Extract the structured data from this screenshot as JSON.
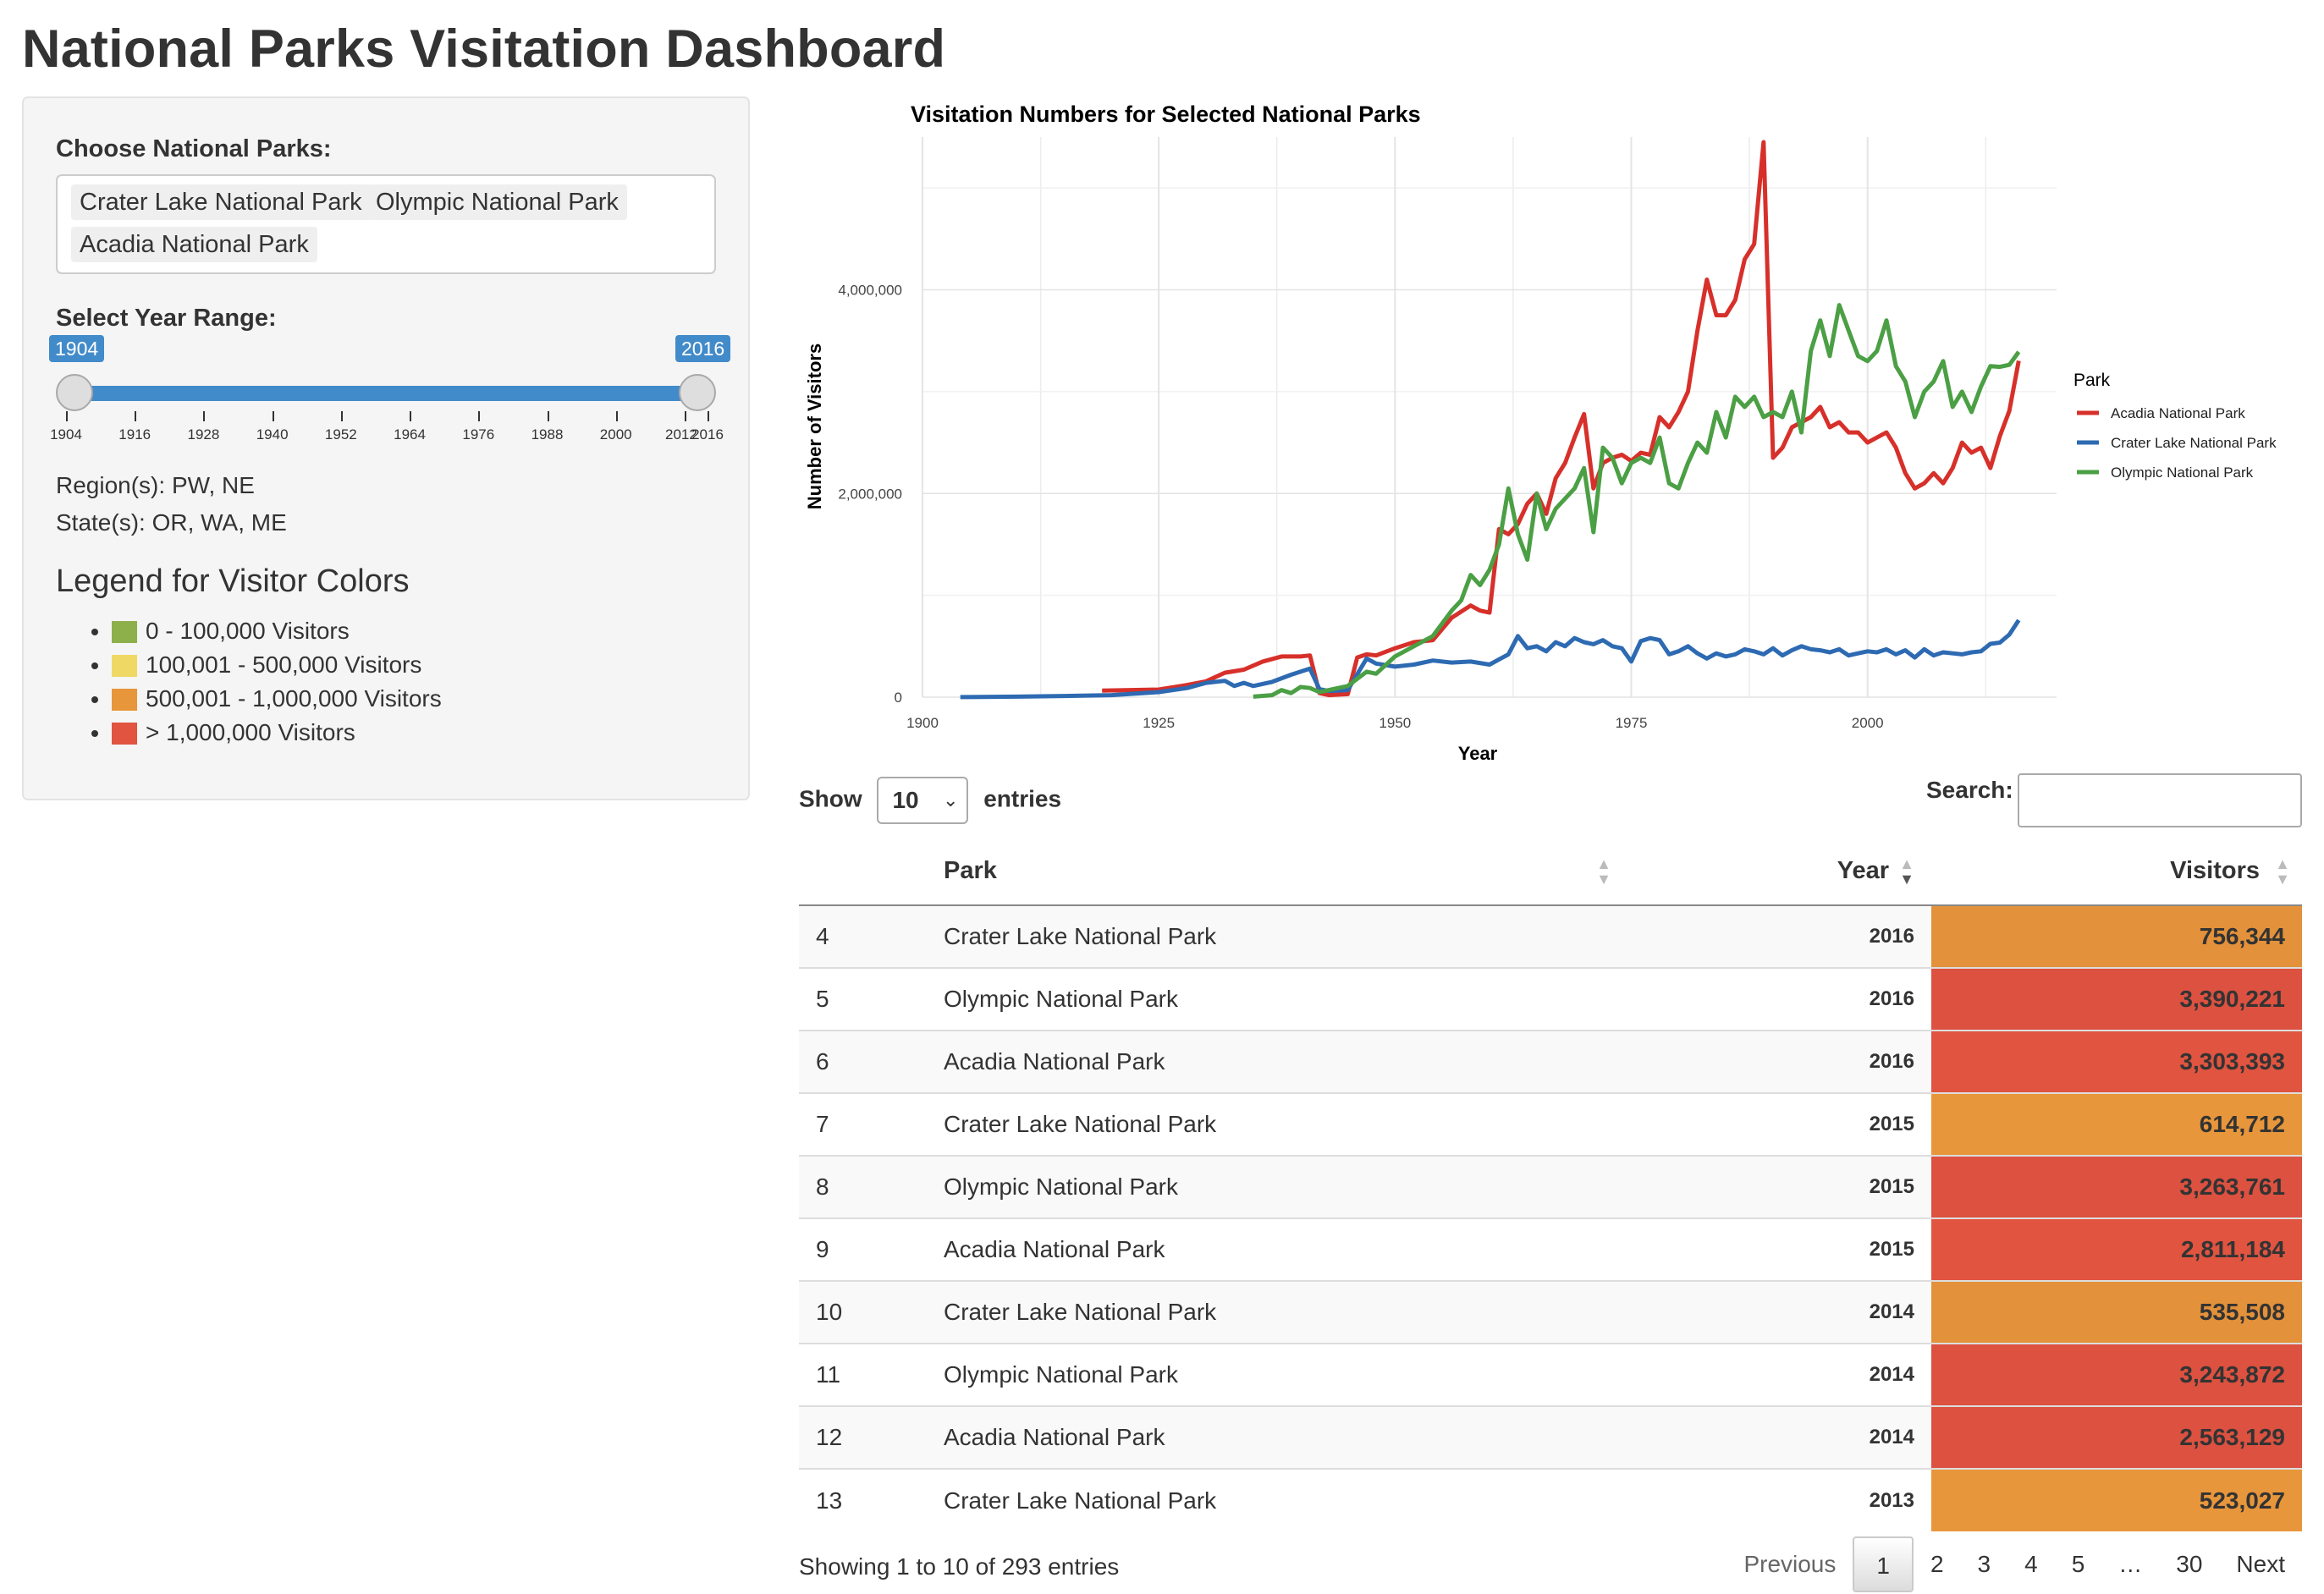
{
  "app": {
    "title": "National Parks Visitation Dashboard"
  },
  "sidebar": {
    "parks_label": "Choose National Parks:",
    "selected_parks": [
      "Crater Lake National Park",
      "Olympic National Park",
      "Acadia National Park"
    ],
    "year_label": "Select Year Range:",
    "year_min": "1904",
    "year_max": "2016",
    "year_ticks": [
      "1904",
      "1916",
      "1928",
      "1940",
      "1952",
      "1964",
      "1976",
      "1988",
      "2000",
      "2012",
      "2016"
    ],
    "regions": "Region(s): PW, NE",
    "states": "State(s): OR, WA, ME",
    "legend_title": "Legend for Visitor Colors",
    "legend_items": [
      {
        "label": "0 - 100,000 Visitors",
        "color": "#8db04a"
      },
      {
        "label": "100,001 - 500,000 Visitors",
        "color": "#f0d865"
      },
      {
        "label": "500,001 - 1,000,000 Visitors",
        "color": "#e8963b"
      },
      {
        "label": "> 1,000,000 Visitors",
        "color": "#e05440"
      }
    ]
  },
  "chart_data": {
    "type": "line",
    "title": "Visitation Numbers for Selected National Parks",
    "xlabel": "Year",
    "ylabel": "Number of Visitors",
    "xlim": [
      1900,
      2020
    ],
    "ylim": [
      0,
      5500000
    ],
    "x_ticks": [
      1900,
      1925,
      1950,
      1975,
      2000
    ],
    "y_ticks": [
      0,
      2000000,
      4000000
    ],
    "y_tick_labels": [
      "0",
      "2,000,000",
      "4,000,000"
    ],
    "grid": true,
    "legend_title": "Park",
    "legend_position": "right",
    "series": [
      {
        "name": "Acadia National Park",
        "color": "#d7302a",
        "points": [
          [
            1919,
            64000
          ],
          [
            1922,
            70000
          ],
          [
            1925,
            75000
          ],
          [
            1928,
            120000
          ],
          [
            1930,
            155000
          ],
          [
            1932,
            240000
          ],
          [
            1934,
            270000
          ],
          [
            1936,
            350000
          ],
          [
            1938,
            400000
          ],
          [
            1940,
            400000
          ],
          [
            1941,
            410000
          ],
          [
            1942,
            40000
          ],
          [
            1943,
            20000
          ],
          [
            1945,
            30000
          ],
          [
            1946,
            390000
          ],
          [
            1947,
            420000
          ],
          [
            1948,
            410000
          ],
          [
            1950,
            480000
          ],
          [
            1952,
            540000
          ],
          [
            1954,
            560000
          ],
          [
            1956,
            780000
          ],
          [
            1958,
            900000
          ],
          [
            1959,
            850000
          ],
          [
            1960,
            830000
          ],
          [
            1961,
            1650000
          ],
          [
            1962,
            1600000
          ],
          [
            1963,
            1700000
          ],
          [
            1964,
            1900000
          ],
          [
            1965,
            2000000
          ],
          [
            1966,
            1800000
          ],
          [
            1967,
            2150000
          ],
          [
            1968,
            2300000
          ],
          [
            1969,
            2550000
          ],
          [
            1970,
            2780000
          ],
          [
            1971,
            2050000
          ],
          [
            1972,
            2300000
          ],
          [
            1973,
            2350000
          ],
          [
            1974,
            2380000
          ],
          [
            1975,
            2320000
          ],
          [
            1976,
            2400000
          ],
          [
            1977,
            2380000
          ],
          [
            1978,
            2750000
          ],
          [
            1979,
            2650000
          ],
          [
            1980,
            2800000
          ],
          [
            1981,
            3000000
          ],
          [
            1982,
            3600000
          ],
          [
            1983,
            4100000
          ],
          [
            1984,
            3750000
          ],
          [
            1985,
            3750000
          ],
          [
            1986,
            3900000
          ],
          [
            1987,
            4300000
          ],
          [
            1988,
            4450000
          ],
          [
            1989,
            5450000
          ],
          [
            1990,
            2350000
          ],
          [
            1991,
            2450000
          ],
          [
            1992,
            2650000
          ],
          [
            1993,
            2700000
          ],
          [
            1994,
            2750000
          ],
          [
            1995,
            2850000
          ],
          [
            1996,
            2650000
          ],
          [
            1997,
            2700000
          ],
          [
            1998,
            2600000
          ],
          [
            1999,
            2600000
          ],
          [
            2000,
            2500000
          ],
          [
            2001,
            2550000
          ],
          [
            2002,
            2600000
          ],
          [
            2003,
            2450000
          ],
          [
            2004,
            2200000
          ],
          [
            2005,
            2050000
          ],
          [
            2006,
            2100000
          ],
          [
            2007,
            2200000
          ],
          [
            2008,
            2100000
          ],
          [
            2009,
            2250000
          ],
          [
            2010,
            2500000
          ],
          [
            2011,
            2400000
          ],
          [
            2012,
            2450000
          ],
          [
            2013,
            2250000
          ],
          [
            2014,
            2563129
          ],
          [
            2015,
            2811184
          ],
          [
            2016,
            3303393
          ]
        ]
      },
      {
        "name": "Crater Lake National Park",
        "color": "#2d6ab2",
        "points": [
          [
            1904,
            1000
          ],
          [
            1910,
            5000
          ],
          [
            1915,
            12000
          ],
          [
            1920,
            20000
          ],
          [
            1925,
            50000
          ],
          [
            1928,
            90000
          ],
          [
            1930,
            140000
          ],
          [
            1932,
            160000
          ],
          [
            1933,
            110000
          ],
          [
            1934,
            140000
          ],
          [
            1935,
            110000
          ],
          [
            1937,
            150000
          ],
          [
            1939,
            220000
          ],
          [
            1941,
            280000
          ],
          [
            1942,
            80000
          ],
          [
            1943,
            60000
          ],
          [
            1945,
            70000
          ],
          [
            1947,
            380000
          ],
          [
            1948,
            330000
          ],
          [
            1950,
            300000
          ],
          [
            1952,
            320000
          ],
          [
            1954,
            360000
          ],
          [
            1956,
            340000
          ],
          [
            1958,
            350000
          ],
          [
            1960,
            320000
          ],
          [
            1962,
            420000
          ],
          [
            1963,
            600000
          ],
          [
            1964,
            480000
          ],
          [
            1965,
            500000
          ],
          [
            1966,
            450000
          ],
          [
            1967,
            540000
          ],
          [
            1968,
            500000
          ],
          [
            1969,
            580000
          ],
          [
            1970,
            540000
          ],
          [
            1971,
            520000
          ],
          [
            1972,
            560000
          ],
          [
            1973,
            500000
          ],
          [
            1974,
            480000
          ],
          [
            1975,
            350000
          ],
          [
            1976,
            550000
          ],
          [
            1977,
            580000
          ],
          [
            1978,
            560000
          ],
          [
            1979,
            420000
          ],
          [
            1980,
            450000
          ],
          [
            1981,
            500000
          ],
          [
            1982,
            430000
          ],
          [
            1983,
            380000
          ],
          [
            1984,
            430000
          ],
          [
            1985,
            400000
          ],
          [
            1986,
            420000
          ],
          [
            1987,
            470000
          ],
          [
            1988,
            450000
          ],
          [
            1989,
            420000
          ],
          [
            1990,
            480000
          ],
          [
            1991,
            410000
          ],
          [
            1992,
            460000
          ],
          [
            1993,
            500000
          ],
          [
            1994,
            470000
          ],
          [
            1995,
            460000
          ],
          [
            1996,
            440000
          ],
          [
            1997,
            470000
          ],
          [
            1998,
            410000
          ],
          [
            1999,
            430000
          ],
          [
            2000,
            450000
          ],
          [
            2001,
            440000
          ],
          [
            2002,
            470000
          ],
          [
            2003,
            420000
          ],
          [
            2004,
            460000
          ],
          [
            2005,
            390000
          ],
          [
            2006,
            470000
          ],
          [
            2007,
            410000
          ],
          [
            2008,
            440000
          ],
          [
            2009,
            430000
          ],
          [
            2010,
            420000
          ],
          [
            2011,
            440000
          ],
          [
            2012,
            450000
          ],
          [
            2013,
            523027
          ],
          [
            2014,
            535508
          ],
          [
            2015,
            614712
          ],
          [
            2016,
            756344
          ]
        ]
      },
      {
        "name": "Olympic National Park",
        "color": "#4b9f44",
        "points": [
          [
            1935,
            5000
          ],
          [
            1937,
            20000
          ],
          [
            1938,
            70000
          ],
          [
            1939,
            40000
          ],
          [
            1940,
            100000
          ],
          [
            1941,
            90000
          ],
          [
            1942,
            50000
          ],
          [
            1944,
            90000
          ],
          [
            1945,
            110000
          ],
          [
            1947,
            250000
          ],
          [
            1948,
            230000
          ],
          [
            1950,
            400000
          ],
          [
            1952,
            500000
          ],
          [
            1954,
            600000
          ],
          [
            1956,
            850000
          ],
          [
            1957,
            950000
          ],
          [
            1958,
            1200000
          ],
          [
            1959,
            1100000
          ],
          [
            1960,
            1250000
          ],
          [
            1961,
            1500000
          ],
          [
            1962,
            2050000
          ],
          [
            1963,
            1600000
          ],
          [
            1964,
            1350000
          ],
          [
            1965,
            2000000
          ],
          [
            1966,
            1650000
          ],
          [
            1967,
            1850000
          ],
          [
            1968,
            1950000
          ],
          [
            1969,
            2050000
          ],
          [
            1970,
            2250000
          ],
          [
            1971,
            1620000
          ],
          [
            1972,
            2450000
          ],
          [
            1973,
            2350000
          ],
          [
            1974,
            2100000
          ],
          [
            1975,
            2300000
          ],
          [
            1976,
            2350000
          ],
          [
            1977,
            2300000
          ],
          [
            1978,
            2550000
          ],
          [
            1979,
            2100000
          ],
          [
            1980,
            2050000
          ],
          [
            1981,
            2300000
          ],
          [
            1982,
            2500000
          ],
          [
            1983,
            2400000
          ],
          [
            1984,
            2800000
          ],
          [
            1985,
            2550000
          ],
          [
            1986,
            2950000
          ],
          [
            1987,
            2850000
          ],
          [
            1988,
            2950000
          ],
          [
            1989,
            2750000
          ],
          [
            1990,
            2800000
          ],
          [
            1991,
            2750000
          ],
          [
            1992,
            3000000
          ],
          [
            1993,
            2600000
          ],
          [
            1994,
            3400000
          ],
          [
            1995,
            3700000
          ],
          [
            1996,
            3350000
          ],
          [
            1997,
            3850000
          ],
          [
            1998,
            3600000
          ],
          [
            1999,
            3350000
          ],
          [
            2000,
            3300000
          ],
          [
            2001,
            3400000
          ],
          [
            2002,
            3700000
          ],
          [
            2003,
            3250000
          ],
          [
            2004,
            3100000
          ],
          [
            2005,
            2750000
          ],
          [
            2006,
            3000000
          ],
          [
            2007,
            3100000
          ],
          [
            2008,
            3300000
          ],
          [
            2009,
            2850000
          ],
          [
            2010,
            3000000
          ],
          [
            2011,
            2800000
          ],
          [
            2012,
            3050000
          ],
          [
            2013,
            3250000
          ],
          [
            2014,
            3243872
          ],
          [
            2015,
            3263761
          ],
          [
            2016,
            3390221
          ]
        ]
      }
    ]
  },
  "table": {
    "length_prefix": "Show",
    "length_value": "10",
    "length_suffix": "entries",
    "search_label": "Search:",
    "search_value": "",
    "columns": [
      "",
      "Park",
      "Year",
      "Visitors"
    ],
    "rows": [
      {
        "idx": "4",
        "park": "Crater Lake National Park",
        "year": "2016",
        "visitors": "756,344",
        "color": "#e3913a"
      },
      {
        "idx": "5",
        "park": "Olympic National Park",
        "year": "2016",
        "visitors": "3,390,221",
        "color": "#dc5140"
      },
      {
        "idx": "6",
        "park": "Acadia National Park",
        "year": "2016",
        "visitors": "3,303,393",
        "color": "#e05440"
      },
      {
        "idx": "7",
        "park": "Crater Lake National Park",
        "year": "2015",
        "visitors": "614,712",
        "color": "#e8963b"
      },
      {
        "idx": "8",
        "park": "Olympic National Park",
        "year": "2015",
        "visitors": "3,263,761",
        "color": "#dc5140"
      },
      {
        "idx": "9",
        "park": "Acadia National Park",
        "year": "2015",
        "visitors": "2,811,184",
        "color": "#e05440"
      },
      {
        "idx": "10",
        "park": "Crater Lake National Park",
        "year": "2014",
        "visitors": "535,508",
        "color": "#e3913a"
      },
      {
        "idx": "11",
        "park": "Olympic National Park",
        "year": "2014",
        "visitors": "3,243,872",
        "color": "#dc5140"
      },
      {
        "idx": "12",
        "park": "Acadia National Park",
        "year": "2014",
        "visitors": "2,563,129",
        "color": "#dc5140"
      },
      {
        "idx": "13",
        "park": "Crater Lake National Park",
        "year": "2013",
        "visitors": "523,027",
        "color": "#e8963b"
      }
    ],
    "info": "Showing 1 to 10 of 293 entries",
    "pagination": [
      "Previous",
      "1",
      "2",
      "3",
      "4",
      "5",
      "…",
      "30",
      "Next"
    ],
    "current_page": "1"
  }
}
